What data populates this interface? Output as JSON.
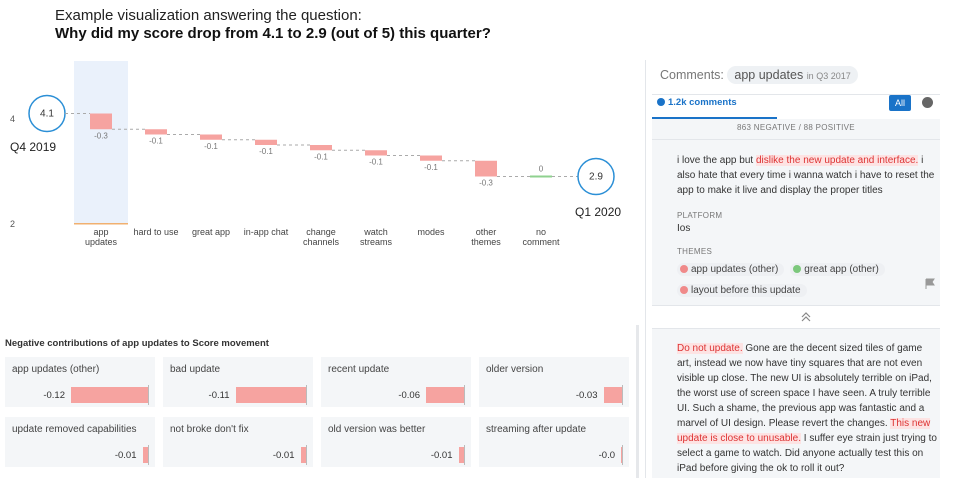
{
  "header": {
    "intro": "Example visualization answering the question:",
    "question": "Why did my score drop from 4.1 to 2.9 (out of 5) this quarter?"
  },
  "chart_data": {
    "type": "waterfall",
    "start_value": 4.1,
    "start_label": "Q4 2019",
    "end_value": 2.9,
    "end_label": "Q1 2020",
    "categories": [
      "app\nupdates",
      "hard to use",
      "great app",
      "in-app chat",
      "change\nchannels",
      "watch\nstreams",
      "modes",
      "other\nthemes",
      "no\ncomment"
    ],
    "values": [
      -0.3,
      -0.1,
      -0.1,
      -0.1,
      -0.1,
      -0.1,
      -0.1,
      -0.3,
      0
    ],
    "negative_color": "#f6a3a0",
    "zero_color": "#8fd18f",
    "highlight_color": "#eaf1fb",
    "ylim": [
      1.9,
      5.1
    ],
    "yticks": [
      4,
      2
    ]
  },
  "contributions": {
    "title": "Negative contributions of app updates to Score movement",
    "color": "#f6a3a0",
    "items": [
      {
        "name": "app updates (other)",
        "value": -0.12
      },
      {
        "name": "bad update",
        "value": -0.11
      },
      {
        "name": "recent update",
        "value": -0.06
      },
      {
        "name": "older version",
        "value": -0.03
      },
      {
        "name": "update removed capabilities",
        "value": -0.01
      },
      {
        "name": "not broke don't fix",
        "value": -0.01
      },
      {
        "name": "old version was better",
        "value": -0.01
      },
      {
        "name": "streaming after update",
        "value": 0,
        "value_label": "-0.0"
      }
    ]
  },
  "comments_panel": {
    "label": "Comments:",
    "topic": "app updates",
    "period": "in Q3 2017",
    "count_tab": "1.2k comments",
    "filter": "All",
    "summary": "863 NEGATIVE / 88 POSITIVE",
    "platform_label": "PLATFORM",
    "platform": "Ios",
    "themes_label": "THEMES",
    "themes": [
      {
        "text": "app updates (other)",
        "sentiment": "negative"
      },
      {
        "text": "great app (other)",
        "sentiment": "positive"
      },
      {
        "text": "layout before this update",
        "sentiment": "negative"
      }
    ],
    "comments": [
      {
        "segments": [
          {
            "text": "i love the app but ",
            "highlight": false
          },
          {
            "text": "dislike the new update and interface.",
            "highlight": true
          },
          {
            "text": " i also hate that every time i wanna watch i have to reset the app to make it live and display the proper titles",
            "highlight": false
          }
        ]
      },
      {
        "segments": [
          {
            "text": "Do not update.",
            "highlight": true
          },
          {
            "text": " Gone are the decent sized tiles of game art, instead we now have tiny squares that are not even visible up close. The new UI is absolutely terrible on iPad, the worst use of screen space I have seen. A truly terrible UI. Such a shame, the previous app was fantastic and a marvel of UI design. Please revert the changes. ",
            "highlight": false
          },
          {
            "text": "This new update is close to unusable.",
            "highlight": true
          },
          {
            "text": " I suffer eye strain just trying to select a game to watch. Did anyone actually test this on iPad before giving the ok to roll it out?",
            "highlight": false
          }
        ]
      }
    ]
  }
}
